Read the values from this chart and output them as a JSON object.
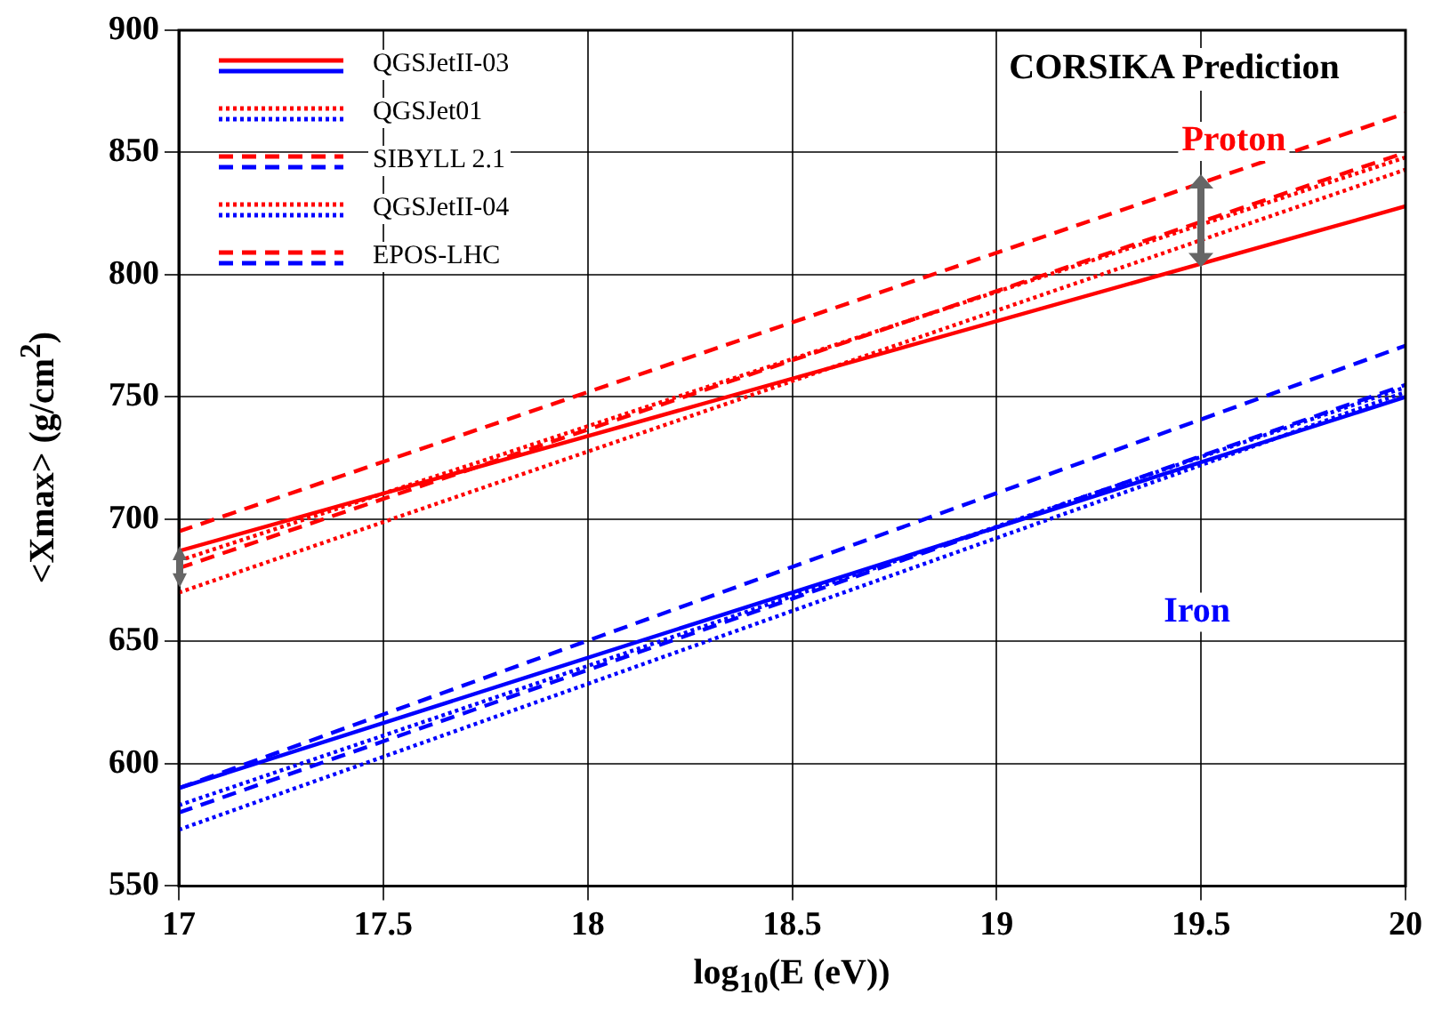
{
  "chart_data": {
    "type": "line",
    "title": "CORSIKA Prediction",
    "xlabel": "log$_{10}$(E (eV))",
    "ylabel": "<Xmax> (g/cm$^{2}$)",
    "x": [
      17,
      20
    ],
    "xlim": [
      17,
      20
    ],
    "xticks": [
      17,
      17.5,
      18,
      18.5,
      19,
      19.5,
      20
    ],
    "ylim": [
      550,
      900
    ],
    "yticks": [
      550,
      600,
      650,
      700,
      750,
      800,
      850,
      900
    ],
    "grid": true,
    "legend": "top left",
    "series": [
      {
        "name": "QGSJetII-03",
        "color": "#ff0000",
        "line_style": "solid",
        "values": [
          687,
          828
        ]
      },
      {
        "name": "QGSJet01",
        "color": "#ff0000",
        "line_style": "dotted",
        "values": [
          670,
          843
        ]
      },
      {
        "name": "SIBYLL 2.1",
        "color": "#ff0000",
        "line_style": "dashed",
        "values": [
          680,
          850
        ]
      },
      {
        "name": "QGSJetII-04",
        "color": "#ff0000",
        "line_style": "dotted",
        "values": [
          683,
          848
        ]
      },
      {
        "name": "EPOS-LHC",
        "color": "#ff0000",
        "line_style": "dashed",
        "values": [
          695,
          866
        ]
      },
      {
        "color": "#0000ff",
        "line_style": "solid",
        "values": [
          590,
          750
        ]
      },
      {
        "color": "#0000ff",
        "line_style": "dotted",
        "values": [
          573,
          752
        ]
      },
      {
        "color": "#0000ff",
        "line_style": "dashed",
        "values": [
          580,
          755
        ]
      },
      {
        "color": "#0000ff",
        "line_style": "dotted",
        "values": [
          583,
          754
        ]
      },
      {
        "color": "#0000ff",
        "line_style": "dashed",
        "values": [
          590,
          771
        ]
      }
    ],
    "annotations": [
      "Proton",
      "Iron"
    ]
  }
}
